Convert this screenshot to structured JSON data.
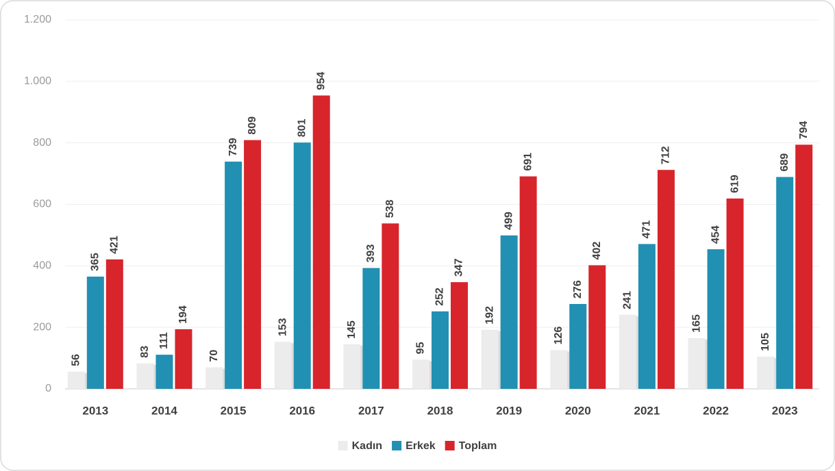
{
  "chart_data": {
    "type": "bar",
    "categories": [
      "2013",
      "2014",
      "2015",
      "2016",
      "2017",
      "2018",
      "2019",
      "2020",
      "2021",
      "2022",
      "2023"
    ],
    "series": [
      {
        "name": "Kadın",
        "color": "#ececec",
        "values": [
          56,
          83,
          70,
          153,
          145,
          95,
          192,
          126,
          241,
          165,
          105
        ]
      },
      {
        "name": "Erkek",
        "color": "#2190b3",
        "values": [
          365,
          111,
          739,
          801,
          393,
          252,
          499,
          276,
          471,
          454,
          689
        ]
      },
      {
        "name": "Toplam",
        "color": "#d7252b",
        "values": [
          421,
          194,
          809,
          954,
          538,
          347,
          691,
          402,
          712,
          619,
          794
        ]
      }
    ],
    "ylim": [
      0,
      1200
    ],
    "yticks": [
      0,
      200,
      400,
      600,
      800,
      {
        "value": 1000,
        "label": "1.000"
      },
      {
        "value": 1200,
        "label": "1.200"
      }
    ],
    "grid": true,
    "legend": "bottom"
  }
}
